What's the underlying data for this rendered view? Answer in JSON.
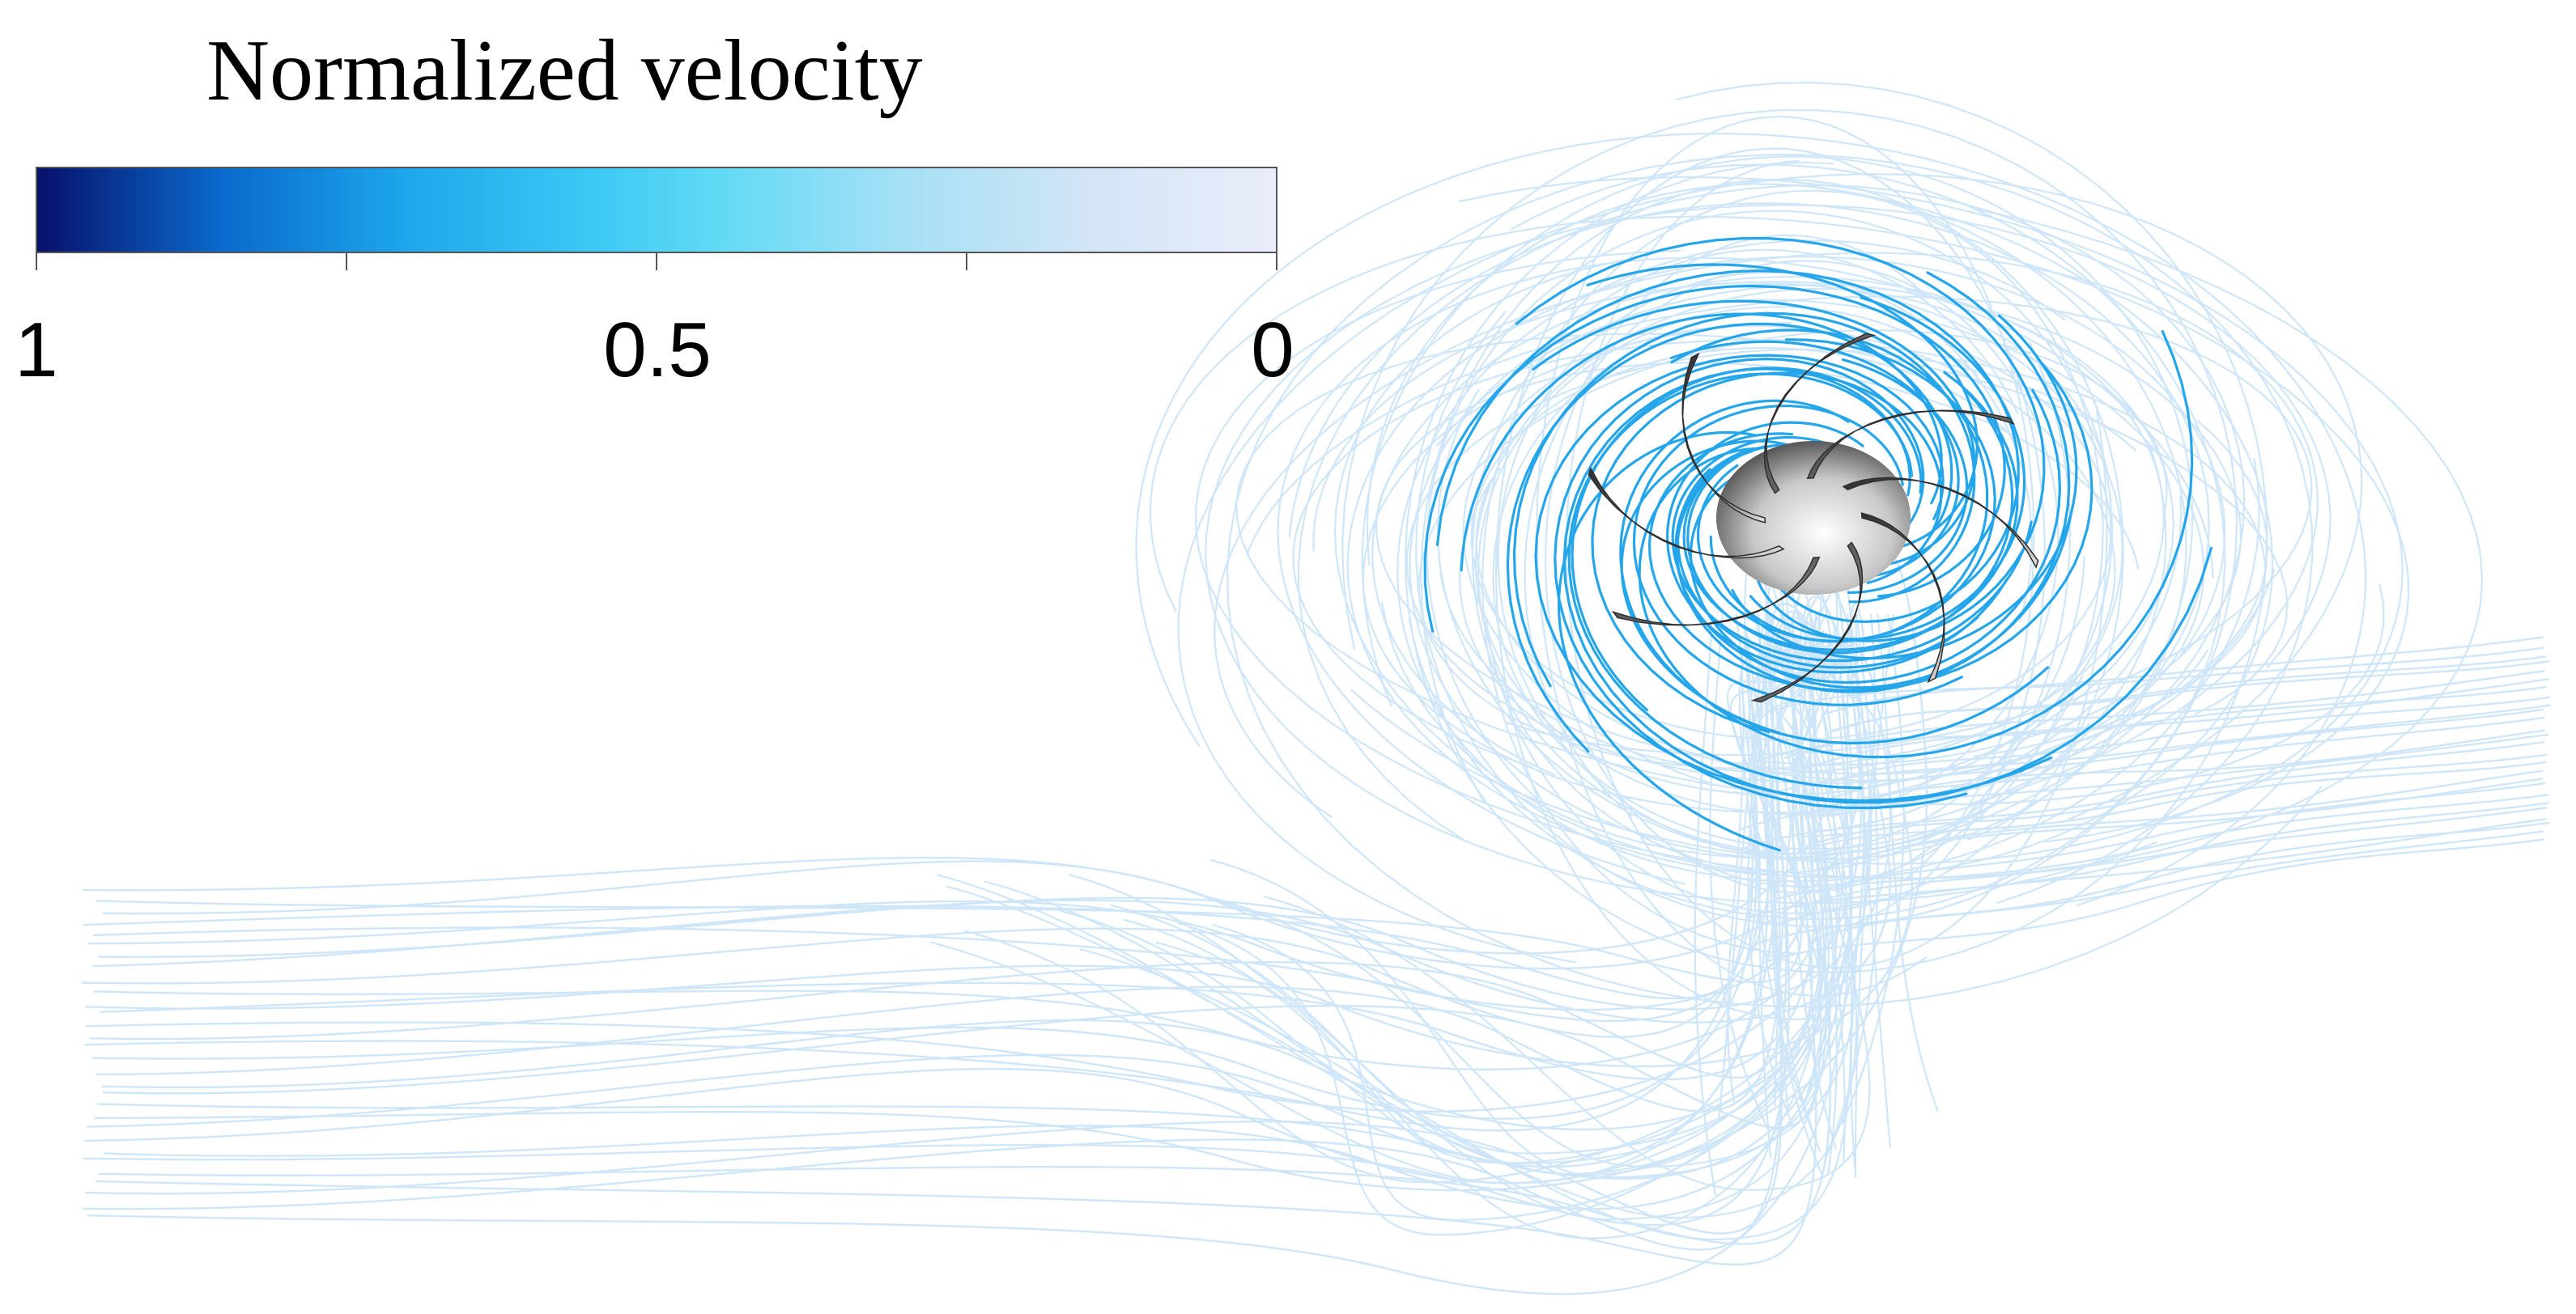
{
  "colorbar": {
    "title": "Normalized velocity",
    "ticks": [
      {
        "value": 1,
        "label": "1"
      },
      {
        "value": 0.75,
        "label": ""
      },
      {
        "value": 0.5,
        "label": "0.5"
      },
      {
        "value": 0.25,
        "label": ""
      },
      {
        "value": 0,
        "label": "0"
      }
    ],
    "gradient_stops": [
      {
        "value": 1.0,
        "color": "#08106b"
      },
      {
        "value": 0.85,
        "color": "#0a6acd"
      },
      {
        "value": 0.7,
        "color": "#1ea7ec"
      },
      {
        "value": 0.55,
        "color": "#3cc9f4"
      },
      {
        "value": 0.45,
        "color": "#62daf5"
      },
      {
        "value": 0.3,
        "color": "#a6e0f6"
      },
      {
        "value": 0.15,
        "color": "#d3e5f7"
      },
      {
        "value": 0.0,
        "color": "#eaedfa"
      }
    ]
  },
  "colors": {
    "outer_streamlines": "#cfe6f8",
    "inner_streamlines": "#25a5ea",
    "impeller_dark": "#404040",
    "impeller_light": "#f0f0f0"
  }
}
